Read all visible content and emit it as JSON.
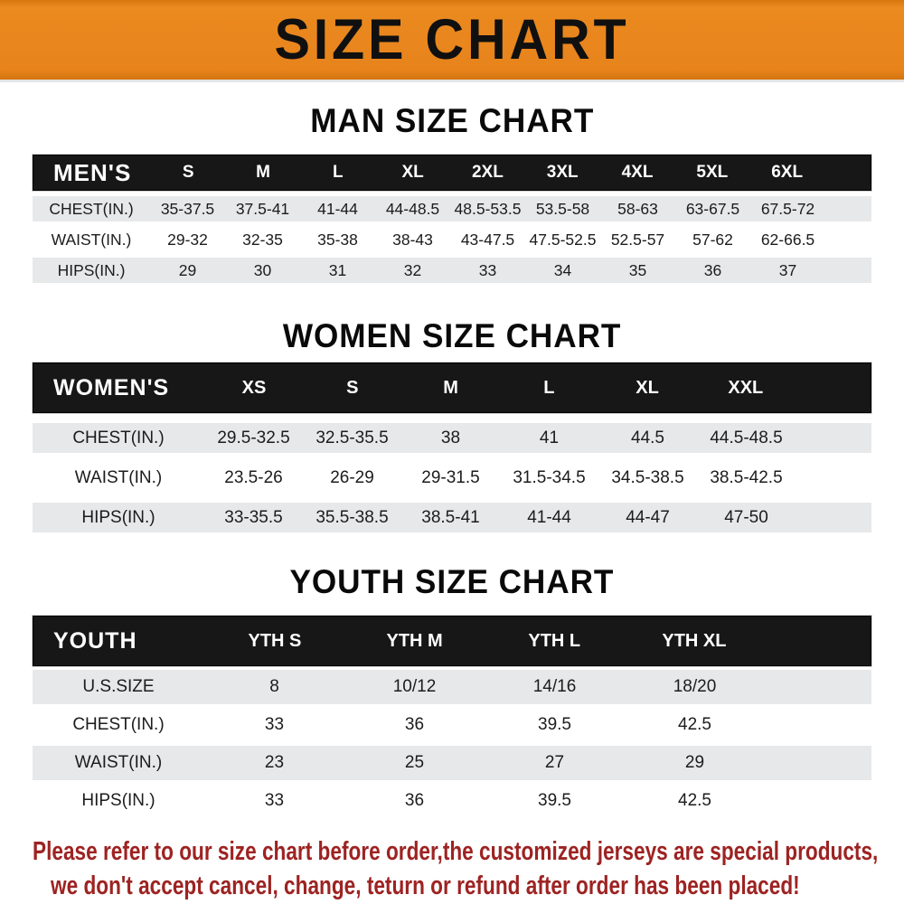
{
  "banner": {
    "title": "SIZE CHART",
    "bg_color": "#E8831C",
    "text_color": "#101010"
  },
  "colors": {
    "header_bar": "#171717",
    "header_text": "#FFFFFF",
    "row_stripe": "#E7E8E9",
    "disclaimer_red": "#9D2322"
  },
  "chart_data": [
    {
      "type": "table",
      "title": "MAN SIZE CHART",
      "header": {
        "label": "MEN'S",
        "sizes": [
          "S",
          "M",
          "L",
          "XL",
          "2XL",
          "3XL",
          "4XL",
          "5XL",
          "6XL"
        ]
      },
      "rows": [
        {
          "label": "CHEST(IN.)",
          "values": [
            "35-37.5",
            "37.5-41",
            "41-44",
            "44-48.5",
            "48.5-53.5",
            "53.5-58",
            "58-63",
            "63-67.5",
            "67.5-72"
          ]
        },
        {
          "label": "WAIST(IN.)",
          "values": [
            "29-32",
            "32-35",
            "35-38",
            "38-43",
            "43-47.5",
            "47.5-52.5",
            "52.5-57",
            "57-62",
            "62-66.5"
          ]
        },
        {
          "label": "HIPS(IN.)",
          "values": [
            "29",
            "30",
            "31",
            "32",
            "33",
            "34",
            "35",
            "36",
            "37"
          ]
        }
      ]
    },
    {
      "type": "table",
      "title": "WOMEN SIZE CHART",
      "header": {
        "label": "WOMEN'S",
        "sizes": [
          "XS",
          "S",
          "M",
          "L",
          "XL",
          "XXL"
        ]
      },
      "rows": [
        {
          "label": "CHEST(IN.)",
          "values": [
            "29.5-32.5",
            "32.5-35.5",
            "38",
            "41",
            "44.5",
            "44.5-48.5"
          ]
        },
        {
          "label": "WAIST(IN.)",
          "values": [
            "23.5-26",
            "26-29",
            "29-31.5",
            "31.5-34.5",
            "34.5-38.5",
            "38.5-42.5"
          ]
        },
        {
          "label": "HIPS(IN.)",
          "values": [
            "33-35.5",
            "35.5-38.5",
            "38.5-41",
            "41-44",
            "44-47",
            "47-50"
          ]
        }
      ]
    },
    {
      "type": "table",
      "title": "YOUTH SIZE CHART",
      "header": {
        "label": "YOUTH",
        "sizes": [
          "YTH S",
          "YTH M",
          "YTH L",
          "YTH XL"
        ]
      },
      "rows": [
        {
          "label": "U.S.SIZE",
          "values": [
            "8",
            "10/12",
            "14/16",
            "18/20"
          ]
        },
        {
          "label": "CHEST(IN.)",
          "values": [
            "33",
            "36",
            "39.5",
            "42.5"
          ]
        },
        {
          "label": "WAIST(IN.)",
          "values": [
            "23",
            "25",
            "27",
            "29"
          ]
        },
        {
          "label": "HIPS(IN.)",
          "values": [
            "33",
            "36",
            "39.5",
            "42.5"
          ]
        }
      ]
    }
  ],
  "disclaimer": {
    "line1": "Please refer to our size chart before order,the customized jerseys are special products,",
    "line2": "we don't accept cancel, change, teturn or refund after order has been placed!"
  }
}
